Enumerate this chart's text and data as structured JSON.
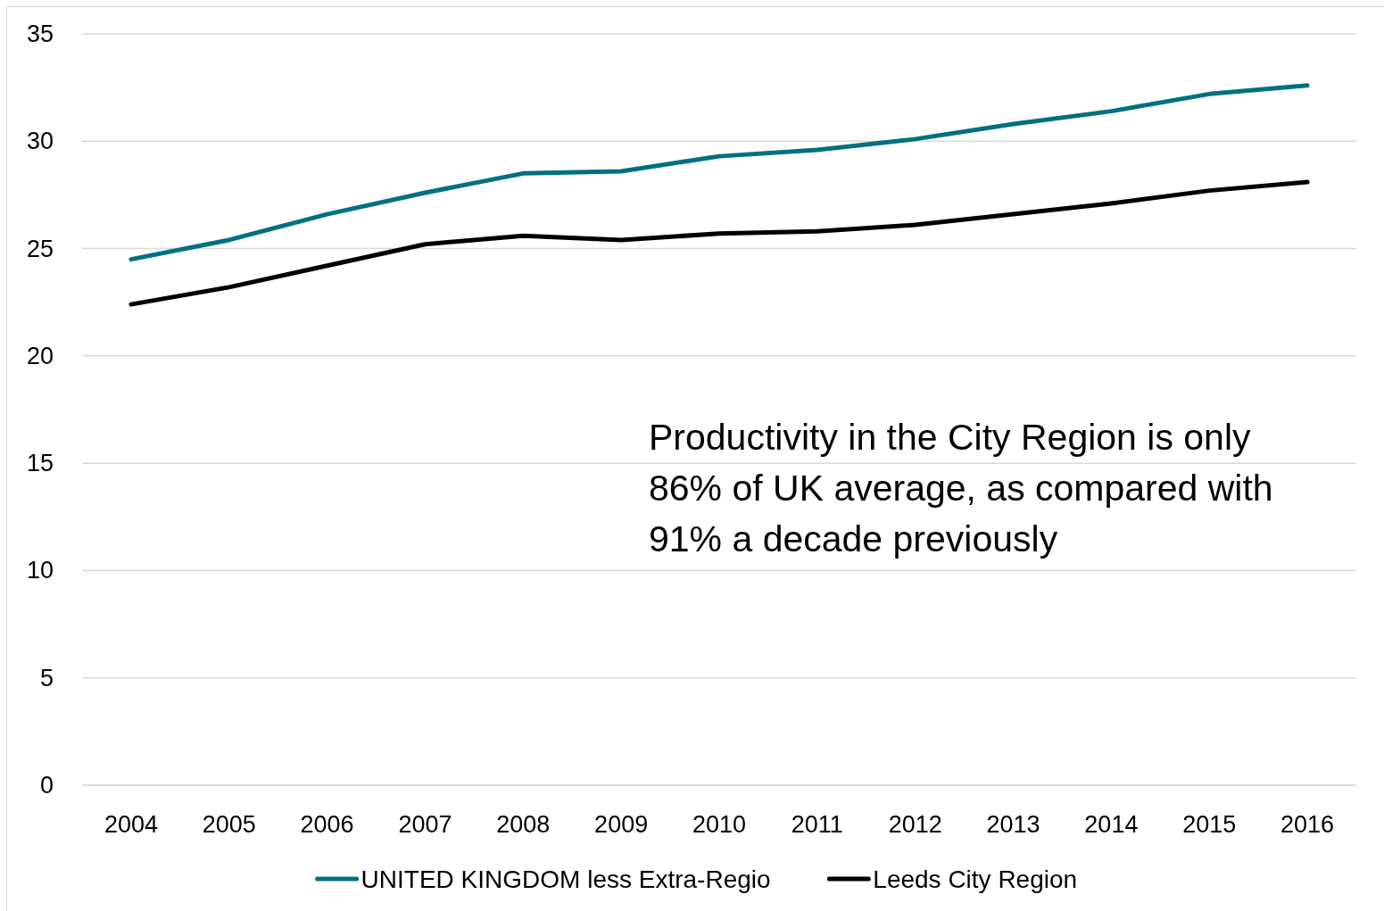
{
  "chart_data": {
    "type": "line",
    "categories": [
      "2004",
      "2005",
      "2006",
      "2007",
      "2008",
      "2009",
      "2010",
      "2011",
      "2012",
      "2013",
      "2014",
      "2015",
      "2016"
    ],
    "series": [
      {
        "name": "UNITED KINGDOM less Extra-Regio",
        "color": "#00717f",
        "values": [
          24.5,
          25.4,
          26.6,
          27.6,
          28.5,
          28.6,
          29.3,
          29.6,
          30.1,
          30.8,
          31.4,
          32.2,
          32.6
        ]
      },
      {
        "name": "Leeds City Region",
        "color": "#000000",
        "values": [
          22.4,
          23.2,
          24.2,
          25.2,
          25.6,
          25.4,
          25.7,
          25.8,
          26.1,
          26.6,
          27.1,
          27.7,
          28.1
        ]
      }
    ],
    "ylim": [
      0,
      35
    ],
    "yticks": [
      0,
      5,
      10,
      15,
      20,
      25,
      30,
      35
    ],
    "grid": "y",
    "legend": "bottom",
    "annotations": [
      "Productivity in the City Region is only\n86% of UK average, as compared with\n91% a decade previously"
    ]
  }
}
